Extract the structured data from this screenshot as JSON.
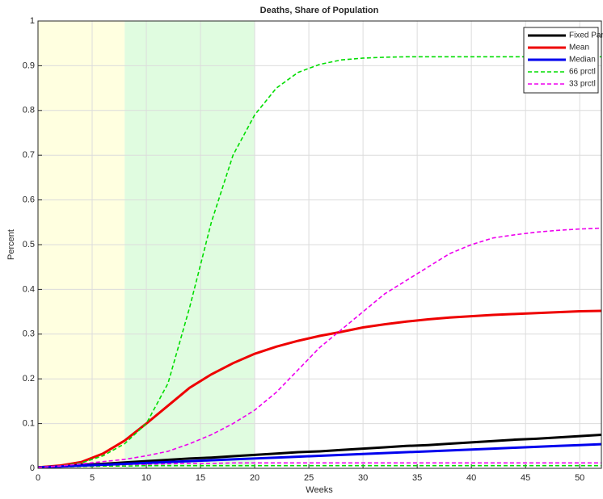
{
  "chart_data": {
    "type": "line",
    "title": "Deaths, Share of Population",
    "xlabel": "Weeks",
    "ylabel": "Percent",
    "x": [
      0,
      2,
      4,
      6,
      8,
      10,
      12,
      14,
      16,
      18,
      20,
      22,
      24,
      26,
      28,
      30,
      32,
      34,
      36,
      38,
      40,
      42,
      44,
      46,
      48,
      50,
      52
    ],
    "xlim": [
      0,
      52
    ],
    "xticks": [
      0,
      5,
      10,
      15,
      20,
      25,
      30,
      35,
      40,
      45,
      50
    ],
    "ylim": [
      0,
      1
    ],
    "yticks": [
      0,
      0.1,
      0.2,
      0.3,
      0.4,
      0.5,
      0.6,
      0.7,
      0.8,
      0.9,
      1
    ],
    "grid": true,
    "legend": "top-right",
    "shaded_regions": [
      {
        "x": [
          0,
          8
        ],
        "color": "#ffffe0"
      },
      {
        "x": [
          8,
          20
        ],
        "color": "#e0fce0"
      }
    ],
    "series": [
      {
        "color": "#00dd00",
        "dash": true,
        "values": [
          0.002,
          0.003,
          0.004,
          0.005,
          0.005,
          0.006,
          0.006,
          0.006,
          0.006,
          0.006,
          0.006,
          0.006,
          0.006,
          0.006,
          0.006,
          0.006,
          0.006,
          0.006,
          0.006,
          0.006,
          0.006,
          0.006,
          0.006,
          0.006,
          0.006,
          0.006,
          0.006
        ]
      },
      {
        "color": "#ee00ee",
        "dash": true,
        "values": [
          0.002,
          0.003,
          0.005,
          0.007,
          0.008,
          0.009,
          0.01,
          0.011,
          0.011,
          0.012,
          0.012,
          0.012,
          0.012,
          0.012,
          0.012,
          0.012,
          0.012,
          0.012,
          0.012,
          0.012,
          0.012,
          0.012,
          0.012,
          0.012,
          0.012,
          0.012,
          0.012
        ]
      },
      {
        "name": "Fixed Par",
        "color": "#000000",
        "dash": false,
        "values": [
          0.002,
          0.005,
          0.008,
          0.01,
          0.013,
          0.016,
          0.019,
          0.022,
          0.024,
          0.027,
          0.03,
          0.033,
          0.036,
          0.038,
          0.041,
          0.044,
          0.047,
          0.05,
          0.052,
          0.055,
          0.058,
          0.061,
          0.064,
          0.066,
          0.069,
          0.072,
          0.075
        ]
      },
      {
        "name": "Mean",
        "color": "#ee0000",
        "dash": false,
        "values": [
          0.002,
          0.006,
          0.014,
          0.033,
          0.062,
          0.1,
          0.14,
          0.18,
          0.21,
          0.235,
          0.256,
          0.272,
          0.285,
          0.296,
          0.305,
          0.315,
          0.322,
          0.328,
          0.333,
          0.337,
          0.34,
          0.343,
          0.345,
          0.347,
          0.349,
          0.351,
          0.352
        ]
      },
      {
        "name": "Median",
        "color": "#0000ee",
        "dash": false,
        "values": [
          0.002,
          0.004,
          0.006,
          0.008,
          0.01,
          0.012,
          0.014,
          0.016,
          0.018,
          0.02,
          0.022,
          0.024,
          0.026,
          0.028,
          0.03,
          0.032,
          0.034,
          0.036,
          0.038,
          0.04,
          0.042,
          0.044,
          0.046,
          0.048,
          0.05,
          0.052,
          0.054
        ]
      },
      {
        "name": "66 prctl",
        "color": "#00dd00",
        "dash": true,
        "values": [
          0.002,
          0.005,
          0.012,
          0.028,
          0.055,
          0.1,
          0.19,
          0.36,
          0.55,
          0.7,
          0.79,
          0.85,
          0.885,
          0.903,
          0.913,
          0.917,
          0.919,
          0.92,
          0.92,
          0.92,
          0.92,
          0.92,
          0.92,
          0.92,
          0.92,
          0.92,
          0.92
        ]
      },
      {
        "name": "33 prctl",
        "color": "#ee00ee",
        "dash": true,
        "values": [
          0.002,
          0.005,
          0.01,
          0.015,
          0.02,
          0.028,
          0.038,
          0.055,
          0.075,
          0.1,
          0.13,
          0.17,
          0.22,
          0.27,
          0.31,
          0.35,
          0.39,
          0.42,
          0.45,
          0.48,
          0.5,
          0.515,
          0.522,
          0.528,
          0.532,
          0.535,
          0.537
        ]
      }
    ]
  }
}
